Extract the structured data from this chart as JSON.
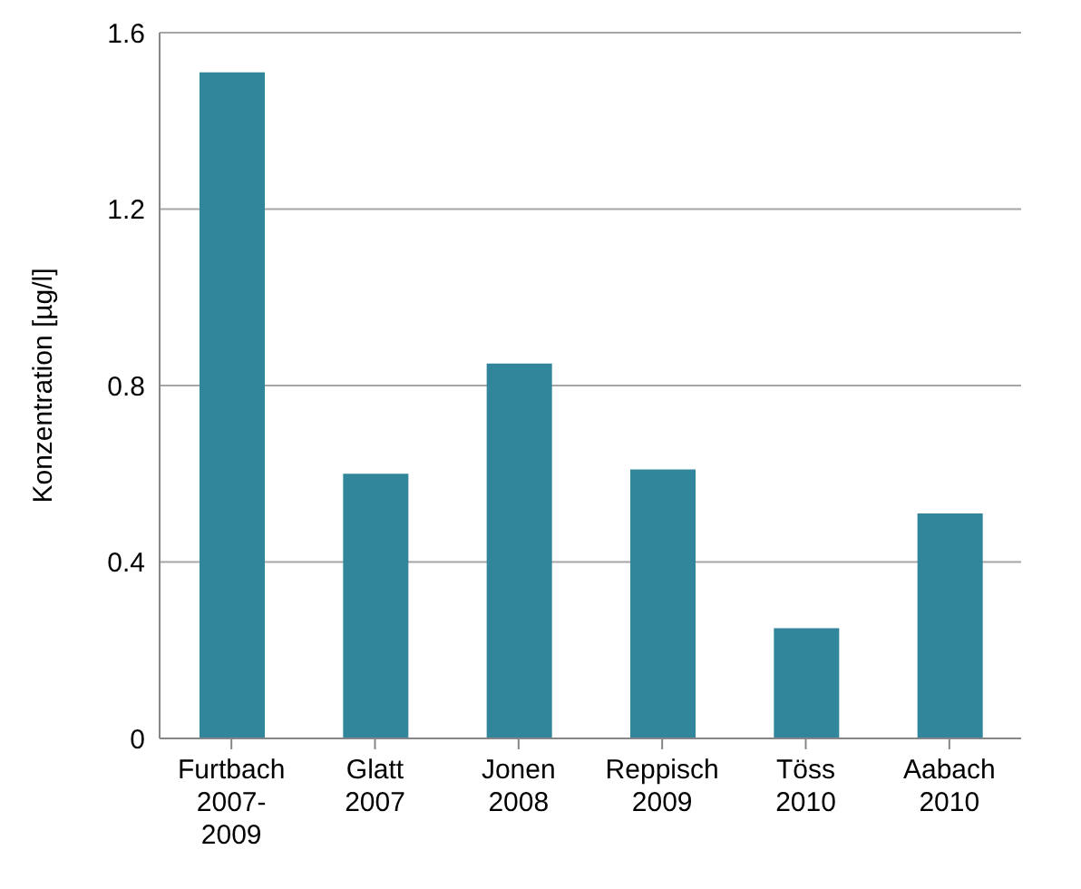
{
  "chart_data": {
    "type": "bar",
    "ylabel": "Konzentration [µg/l]",
    "categories": [
      "Furtbach 2007-2009",
      "Glatt 2007",
      "Jonen 2008",
      "Reppisch 2009",
      "Töss 2010",
      "Aabach 2010"
    ],
    "values": [
      1.51,
      0.6,
      0.85,
      0.61,
      0.25,
      0.51
    ],
    "color": "#31869b",
    "ylim": [
      0,
      1.6
    ],
    "yticks": [
      0,
      0.4,
      0.8,
      1.2,
      1.6
    ],
    "grid": "y"
  }
}
